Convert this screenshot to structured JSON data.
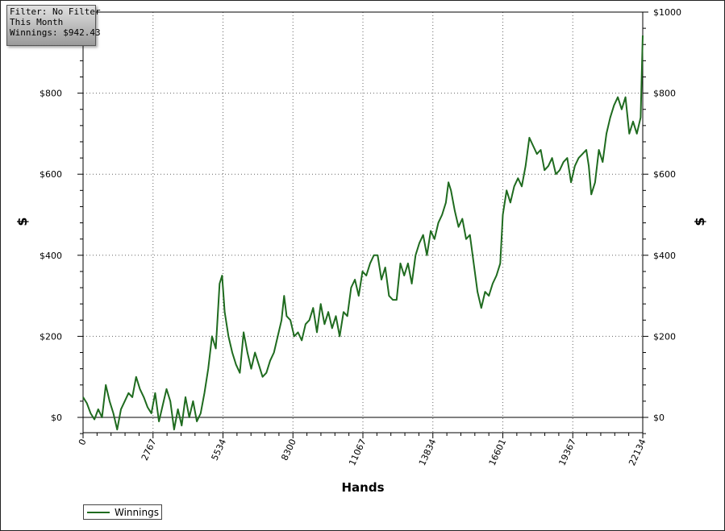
{
  "filter": {
    "line1": "Filter: No Filter",
    "line2": "This Month",
    "line3": "Winnings: $942.43"
  },
  "chart_data": {
    "type": "line",
    "title": "",
    "xlabel": "Hands",
    "ylabel": "$",
    "xlim": [
      0,
      22134
    ],
    "ylim": [
      -40,
      1000
    ],
    "x_ticks": [
      0,
      2767,
      5534,
      8300,
      11067,
      13834,
      16601,
      19367,
      22134
    ],
    "y_ticks": [
      0,
      200,
      400,
      600,
      800,
      1000
    ],
    "y_tick_labels": [
      "$0",
      "$200",
      "$400",
      "$600",
      "$800",
      "$1000"
    ],
    "grid": true,
    "legend": "bottom-left",
    "series": [
      {
        "name": "Winnings",
        "color": "#1f6b1f",
        "points": [
          [
            0,
            50
          ],
          [
            150,
            35
          ],
          [
            300,
            10
          ],
          [
            450,
            -5
          ],
          [
            600,
            20
          ],
          [
            750,
            0
          ],
          [
            900,
            80
          ],
          [
            1050,
            40
          ],
          [
            1200,
            10
          ],
          [
            1350,
            -30
          ],
          [
            1500,
            20
          ],
          [
            1650,
            40
          ],
          [
            1800,
            60
          ],
          [
            1950,
            50
          ],
          [
            2100,
            100
          ],
          [
            2250,
            70
          ],
          [
            2400,
            50
          ],
          [
            2550,
            25
          ],
          [
            2700,
            10
          ],
          [
            2850,
            60
          ],
          [
            3000,
            -10
          ],
          [
            3150,
            30
          ],
          [
            3300,
            70
          ],
          [
            3450,
            40
          ],
          [
            3600,
            -30
          ],
          [
            3750,
            20
          ],
          [
            3900,
            -20
          ],
          [
            4050,
            50
          ],
          [
            4200,
            0
          ],
          [
            4350,
            40
          ],
          [
            4500,
            -10
          ],
          [
            4650,
            10
          ],
          [
            4800,
            60
          ],
          [
            4950,
            120
          ],
          [
            5100,
            200
          ],
          [
            5250,
            170
          ],
          [
            5400,
            330
          ],
          [
            5500,
            350
          ],
          [
            5600,
            260
          ],
          [
            5750,
            200
          ],
          [
            5900,
            160
          ],
          [
            6050,
            130
          ],
          [
            6200,
            110
          ],
          [
            6350,
            210
          ],
          [
            6500,
            160
          ],
          [
            6650,
            120
          ],
          [
            6800,
            160
          ],
          [
            6950,
            130
          ],
          [
            7100,
            100
          ],
          [
            7250,
            110
          ],
          [
            7400,
            140
          ],
          [
            7550,
            160
          ],
          [
            7700,
            200
          ],
          [
            7850,
            240
          ],
          [
            7950,
            300
          ],
          [
            8050,
            250
          ],
          [
            8200,
            240
          ],
          [
            8350,
            200
          ],
          [
            8500,
            210
          ],
          [
            8650,
            190
          ],
          [
            8800,
            230
          ],
          [
            8950,
            240
          ],
          [
            9100,
            270
          ],
          [
            9250,
            210
          ],
          [
            9400,
            280
          ],
          [
            9550,
            230
          ],
          [
            9700,
            260
          ],
          [
            9850,
            220
          ],
          [
            10000,
            250
          ],
          [
            10150,
            200
          ],
          [
            10300,
            260
          ],
          [
            10450,
            250
          ],
          [
            10600,
            320
          ],
          [
            10750,
            340
          ],
          [
            10900,
            300
          ],
          [
            11050,
            360
          ],
          [
            11200,
            350
          ],
          [
            11350,
            380
          ],
          [
            11500,
            400
          ],
          [
            11650,
            400
          ],
          [
            11800,
            340
          ],
          [
            11950,
            370
          ],
          [
            12100,
            300
          ],
          [
            12250,
            290
          ],
          [
            12400,
            290
          ],
          [
            12550,
            380
          ],
          [
            12700,
            350
          ],
          [
            12850,
            380
          ],
          [
            13000,
            330
          ],
          [
            13150,
            400
          ],
          [
            13300,
            430
          ],
          [
            13450,
            450
          ],
          [
            13600,
            400
          ],
          [
            13750,
            460
          ],
          [
            13900,
            440
          ],
          [
            14050,
            480
          ],
          [
            14200,
            500
          ],
          [
            14350,
            530
          ],
          [
            14450,
            580
          ],
          [
            14550,
            560
          ],
          [
            14700,
            510
          ],
          [
            14850,
            470
          ],
          [
            15000,
            490
          ],
          [
            15150,
            440
          ],
          [
            15300,
            450
          ],
          [
            15450,
            380
          ],
          [
            15600,
            310
          ],
          [
            15750,
            270
          ],
          [
            15900,
            310
          ],
          [
            16050,
            300
          ],
          [
            16200,
            330
          ],
          [
            16350,
            350
          ],
          [
            16500,
            380
          ],
          [
            16600,
            500
          ],
          [
            16750,
            560
          ],
          [
            16900,
            530
          ],
          [
            17050,
            570
          ],
          [
            17200,
            590
          ],
          [
            17350,
            570
          ],
          [
            17500,
            620
          ],
          [
            17650,
            690
          ],
          [
            17800,
            670
          ],
          [
            17950,
            650
          ],
          [
            18100,
            660
          ],
          [
            18250,
            610
          ],
          [
            18400,
            620
          ],
          [
            18550,
            640
          ],
          [
            18700,
            600
          ],
          [
            18850,
            610
          ],
          [
            19000,
            630
          ],
          [
            19150,
            640
          ],
          [
            19300,
            580
          ],
          [
            19450,
            620
          ],
          [
            19600,
            640
          ],
          [
            19750,
            650
          ],
          [
            19900,
            660
          ],
          [
            20000,
            620
          ],
          [
            20100,
            550
          ],
          [
            20250,
            580
          ],
          [
            20400,
            660
          ],
          [
            20550,
            630
          ],
          [
            20700,
            700
          ],
          [
            20850,
            740
          ],
          [
            21000,
            770
          ],
          [
            21150,
            790
          ],
          [
            21300,
            760
          ],
          [
            21450,
            790
          ],
          [
            21600,
            700
          ],
          [
            21750,
            730
          ],
          [
            21900,
            700
          ],
          [
            22050,
            740
          ],
          [
            22134,
            942.43
          ]
        ]
      }
    ]
  }
}
